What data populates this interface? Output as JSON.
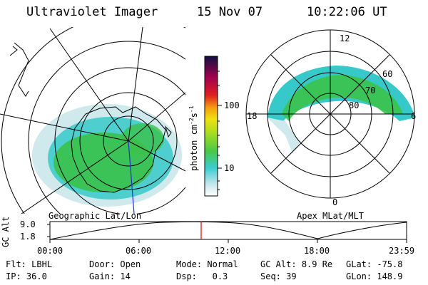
{
  "header": {
    "instrument": "Ultraviolet Imager",
    "date": "15 Nov 07",
    "time": "10:22:06 UT"
  },
  "colorbar": {
    "unit_label": "photon cm",
    "unit_exp1": "-2",
    "unit_s": "s",
    "unit_exp2": "-1",
    "tick_100": "100",
    "tick_10": "10"
  },
  "left_map": {
    "caption": "Geographic Lat/Lon"
  },
  "right_map": {
    "caption": "Apex MLat/MLT",
    "mlt_labels": {
      "top": "12",
      "left": "18",
      "right": "6",
      "bottom": "0"
    },
    "lat_labels": [
      "60",
      "70",
      "80"
    ]
  },
  "altitude_plot": {
    "ylabel_gc": "GC",
    "ylabel_alt": "Alt",
    "y_ticks": [
      "9.0",
      "1.8"
    ],
    "x_ticks": [
      "00:00",
      "06:00",
      "12:00",
      "18:00",
      "23:59"
    ]
  },
  "status": {
    "row1": [
      {
        "label": "Flt:",
        "value": "LBHL"
      },
      {
        "label": "Door:",
        "value": "Open"
      },
      {
        "label": "Mode:",
        "value": "Normal"
      },
      {
        "label": "GC Alt:",
        "value": "8.9 Re"
      },
      {
        "label": "GLat:",
        "value": "-75.8"
      }
    ],
    "row2": [
      {
        "label": "IP:",
        "value": "36.0"
      },
      {
        "label": "Gain:",
        "value": "14"
      },
      {
        "label": "Dsp:",
        "value": "0.3"
      },
      {
        "label": "Seq:",
        "value": "39"
      },
      {
        "label": "GLon:",
        "value": "148.9"
      }
    ]
  },
  "colors": {
    "aurora_green": "#3bc24a",
    "aurora_cyan": "#37c9c9",
    "aurora_pale": "#cfe9ec",
    "track_red": "#e00000",
    "meridian_blue": "#2030d0"
  }
}
